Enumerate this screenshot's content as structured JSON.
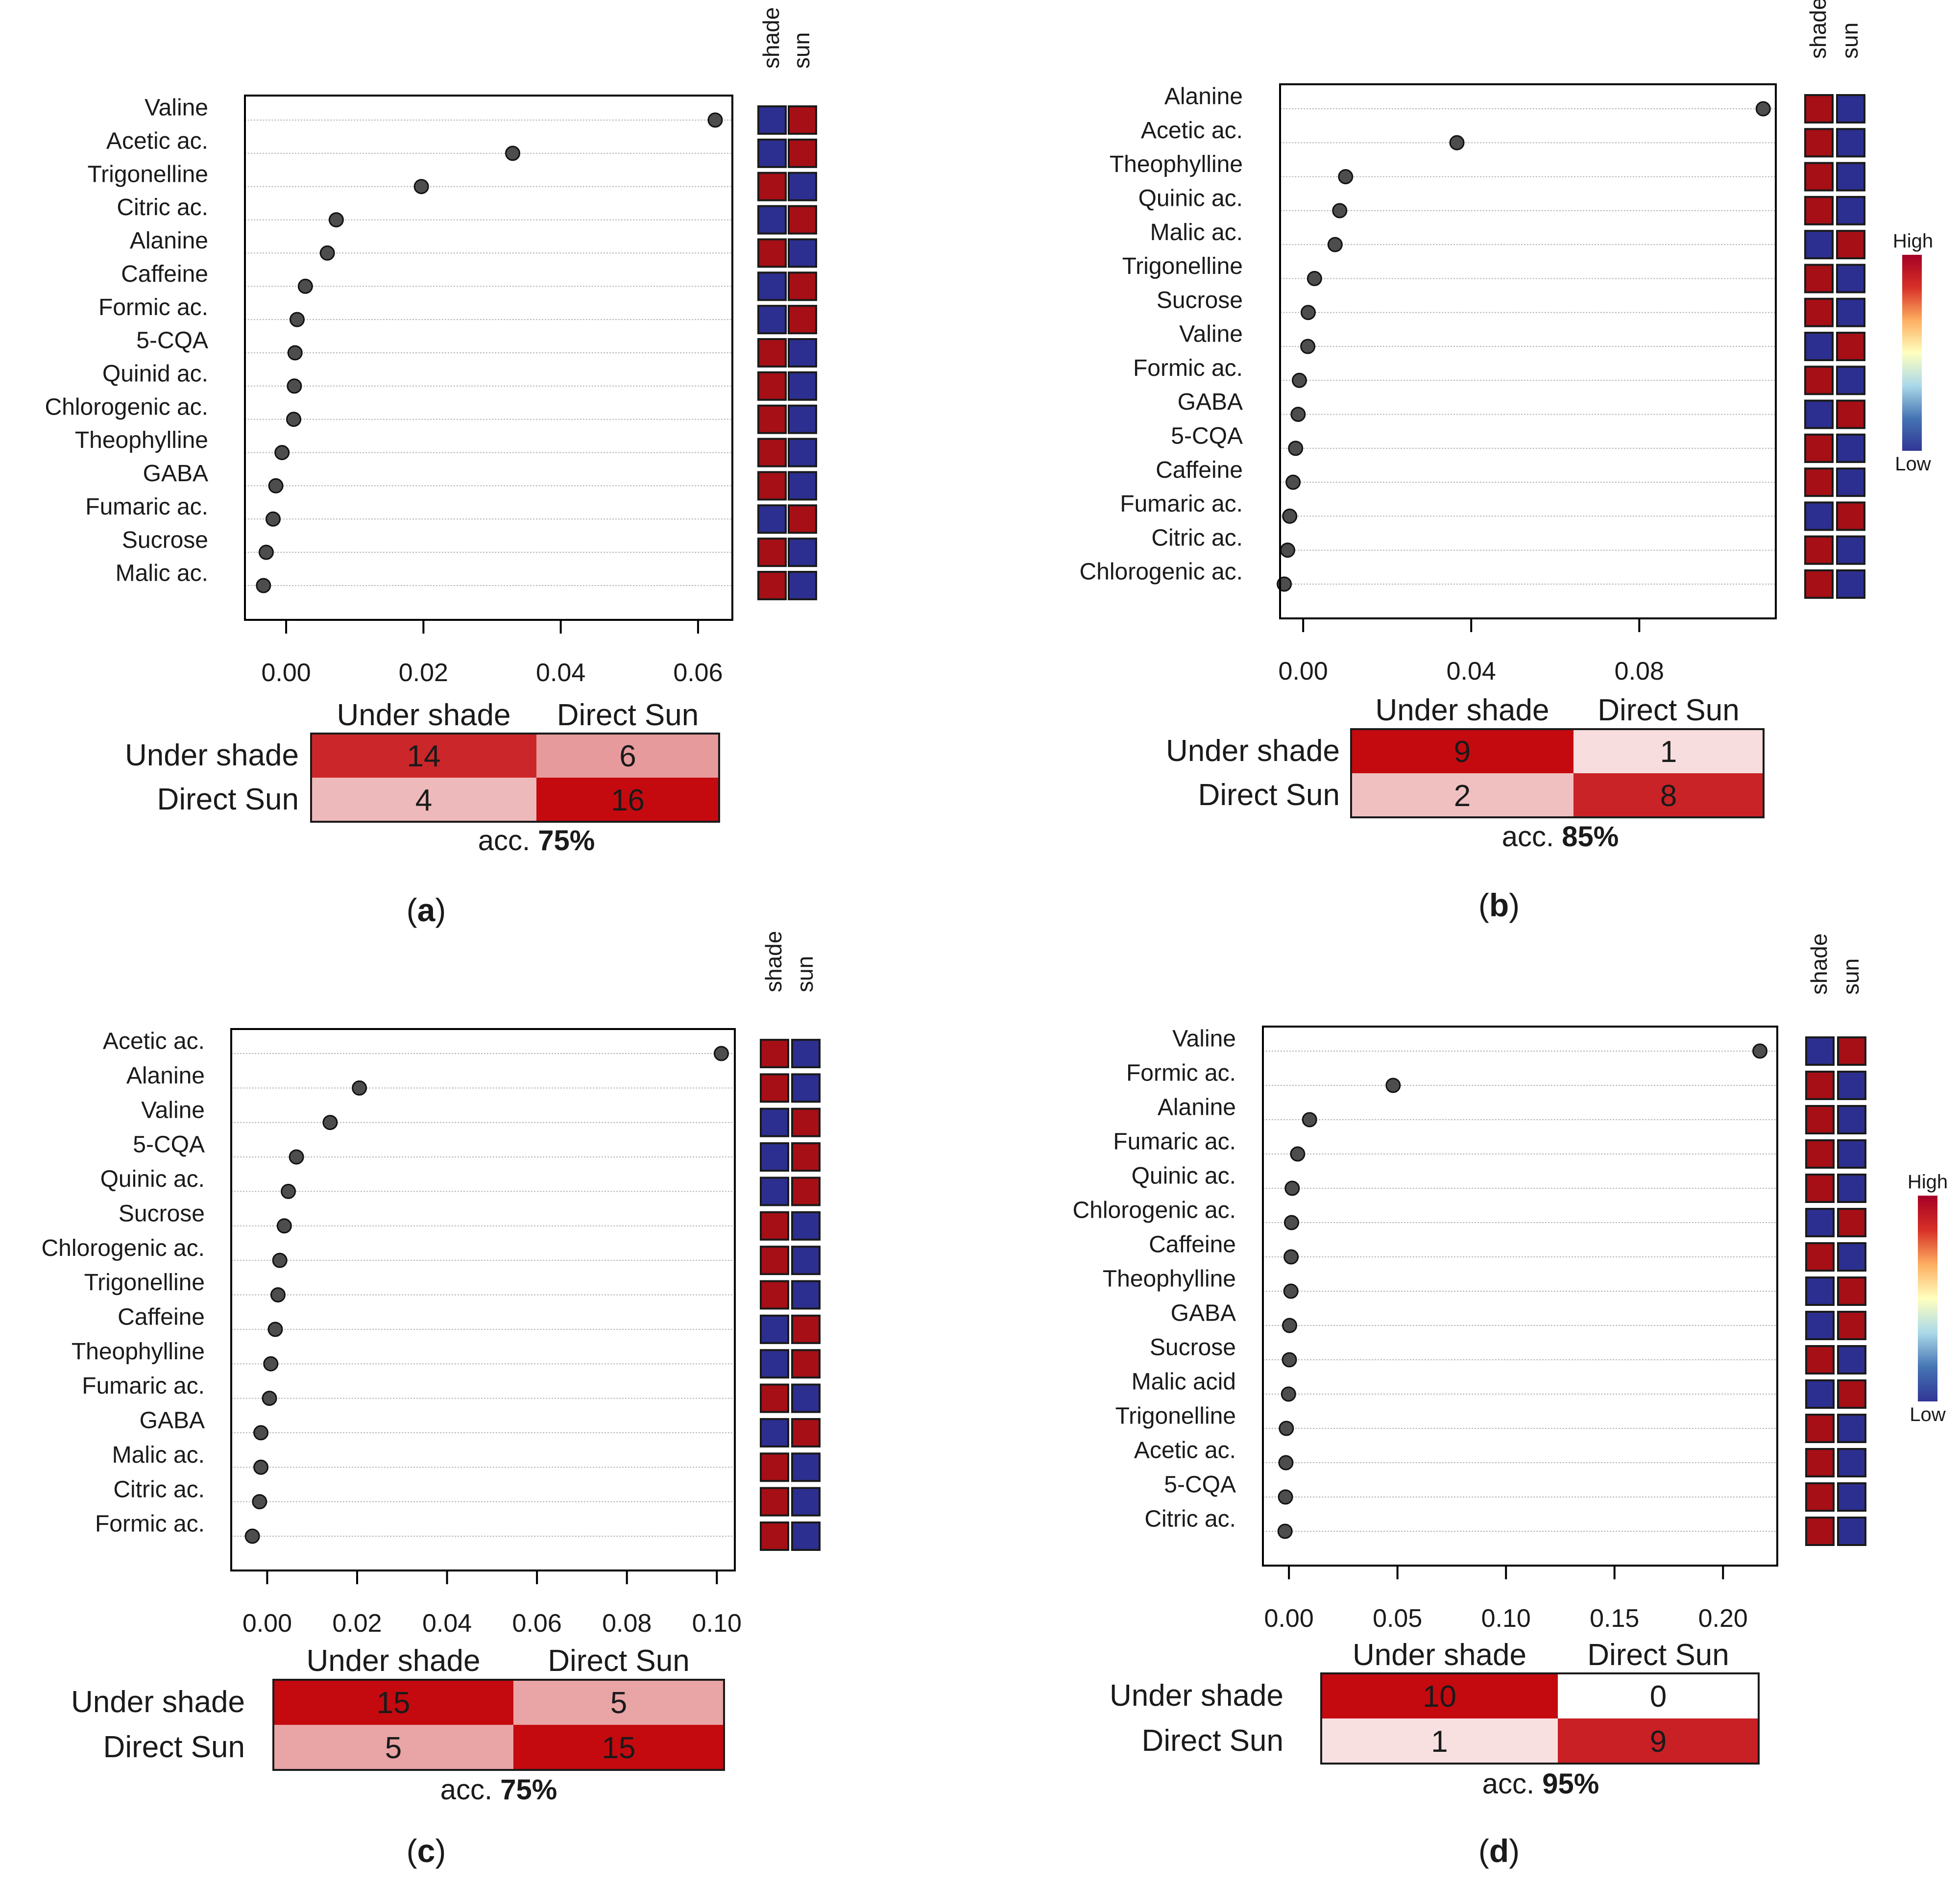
{
  "colors": {
    "high": "#a50f15",
    "low": "#2c2f8f",
    "dot": "#4d4d4d",
    "axis": "#000000",
    "gridline": "#b5b5b5",
    "colorbar": [
      "#313695",
      "#4575b4",
      "#abd9e9",
      "#ffffbf",
      "#fdae61",
      "#d73027",
      "#a50026"
    ]
  },
  "legend": {
    "high_label": "High",
    "low_label": "Low"
  },
  "panels": [
    {
      "label_prefix": "(",
      "label": "a",
      "label_suffix": ")",
      "accuracy_prefix": "acc. ",
      "accuracy": "75%",
      "chart_data": {
        "type": "dotplot",
        "xlabel": "",
        "xlim": [
          -0.006,
          0.065
        ],
        "xticks": [
          0.0,
          0.02,
          0.04,
          0.06
        ],
        "xtick_labels": [
          "0.00",
          "0.02",
          "0.04",
          "0.06"
        ],
        "heatmap_headers": [
          "shade",
          "sun"
        ],
        "items": [
          {
            "name": "Valine",
            "value": 0.0625,
            "shade": "low",
            "sun": "high"
          },
          {
            "name": "Acetic ac.",
            "value": 0.033,
            "shade": "low",
            "sun": "high"
          },
          {
            "name": "Trigonelline",
            "value": 0.0197,
            "shade": "high",
            "sun": "low"
          },
          {
            "name": "Citric ac.",
            "value": 0.0073,
            "shade": "low",
            "sun": "high"
          },
          {
            "name": "Alanine",
            "value": 0.006,
            "shade": "high",
            "sun": "low"
          },
          {
            "name": "Caffeine",
            "value": 0.0028,
            "shade": "low",
            "sun": "high"
          },
          {
            "name": "Formic ac.",
            "value": 0.0016,
            "shade": "low",
            "sun": "high"
          },
          {
            "name": "5-CQA",
            "value": 0.0013,
            "shade": "high",
            "sun": "low"
          },
          {
            "name": "Quinid ac.",
            "value": 0.0012,
            "shade": "high",
            "sun": "low"
          },
          {
            "name": "Chlorogenic ac.",
            "value": 0.0011,
            "shade": "high",
            "sun": "low"
          },
          {
            "name": "Theophylline",
            "value": -0.0006,
            "shade": "high",
            "sun": "low"
          },
          {
            "name": "GABA",
            "value": -0.0015,
            "shade": "high",
            "sun": "low"
          },
          {
            "name": "Fumaric ac.",
            "value": -0.0019,
            "shade": "low",
            "sun": "high"
          },
          {
            "name": "Sucrose",
            "value": -0.0029,
            "shade": "high",
            "sun": "low"
          },
          {
            "name": "Malic ac.",
            "value": -0.0033,
            "shade": "high",
            "sun": "low"
          }
        ]
      },
      "confusion": {
        "col_headers": [
          "Under shade",
          "Direct Sun"
        ],
        "row_headers": [
          "Under shade",
          "Direct Sun"
        ],
        "cells": [
          [
            14,
            6
          ],
          [
            4,
            16
          ]
        ]
      },
      "show_colorbar": false
    },
    {
      "label_prefix": "(",
      "label": "b",
      "label_suffix": ")",
      "accuracy_prefix": "acc. ",
      "accuracy": "85%",
      "chart_data": {
        "type": "dotplot",
        "xlabel": "",
        "xlim": [
          -0.0055,
          0.1125
        ],
        "xticks": [
          0.0,
          0.04,
          0.08
        ],
        "xtick_labels": [
          "0.00",
          "0.04",
          "0.08"
        ],
        "heatmap_headers": [
          "shade",
          "sun"
        ],
        "items": [
          {
            "name": "Alanine",
            "value": 0.1095,
            "shade": "high",
            "sun": "low"
          },
          {
            "name": "Acetic ac.",
            "value": 0.0366,
            "shade": "high",
            "sun": "low"
          },
          {
            "name": "Theophylline",
            "value": 0.0101,
            "shade": "high",
            "sun": "low"
          },
          {
            "name": "Quinic ac.",
            "value": 0.0087,
            "shade": "high",
            "sun": "low"
          },
          {
            "name": "Malic ac.",
            "value": 0.0076,
            "shade": "low",
            "sun": "high"
          },
          {
            "name": "Trigonelline",
            "value": 0.0027,
            "shade": "high",
            "sun": "low"
          },
          {
            "name": "Sucrose",
            "value": 0.0012,
            "shade": "high",
            "sun": "low"
          },
          {
            "name": "Valine",
            "value": 0.0011,
            "shade": "low",
            "sun": "high"
          },
          {
            "name": "Formic ac.",
            "value": -0.0009,
            "shade": "high",
            "sun": "low"
          },
          {
            "name": "GABA",
            "value": -0.0012,
            "shade": "low",
            "sun": "high"
          },
          {
            "name": "5-CQA",
            "value": -0.0018,
            "shade": "high",
            "sun": "low"
          },
          {
            "name": "Caffeine",
            "value": -0.0024,
            "shade": "high",
            "sun": "low"
          },
          {
            "name": "Fumaric ac.",
            "value": -0.0032,
            "shade": "low",
            "sun": "high"
          },
          {
            "name": "Citric ac.",
            "value": -0.0037,
            "shade": "high",
            "sun": "low"
          },
          {
            "name": "Chlorogenic ac.",
            "value": -0.0045,
            "shade": "high",
            "sun": "low"
          }
        ]
      },
      "confusion": {
        "col_headers": [
          "Under shade",
          "Direct Sun"
        ],
        "row_headers": [
          "Under shade",
          "Direct Sun"
        ],
        "cells": [
          [
            9,
            1
          ],
          [
            2,
            8
          ]
        ]
      },
      "show_colorbar": true
    },
    {
      "label_prefix": "(",
      "label": "c",
      "label_suffix": ")",
      "accuracy_prefix": "acc. ",
      "accuracy": "75%",
      "chart_data": {
        "type": "dotplot",
        "xlabel": "",
        "xlim": [
          -0.008,
          0.104
        ],
        "xticks": [
          0.0,
          0.02,
          0.04,
          0.06,
          0.08,
          0.1
        ],
        "xtick_labels": [
          "0.00",
          "0.02",
          "0.04",
          "0.06",
          "0.08",
          "0.10"
        ],
        "heatmap_headers": [
          "shade",
          "sun"
        ],
        "items": [
          {
            "name": "Acetic ac.",
            "value": 0.101,
            "shade": "high",
            "sun": "low"
          },
          {
            "name": "Alanine",
            "value": 0.0205,
            "shade": "high",
            "sun": "low"
          },
          {
            "name": "Valine",
            "value": 0.014,
            "shade": "low",
            "sun": "high"
          },
          {
            "name": "5-CQA",
            "value": 0.0065,
            "shade": "low",
            "sun": "high"
          },
          {
            "name": "Quinic ac.",
            "value": 0.0047,
            "shade": "low",
            "sun": "high"
          },
          {
            "name": "Sucrose",
            "value": 0.0038,
            "shade": "high",
            "sun": "low"
          },
          {
            "name": "Chlorogenic ac.",
            "value": 0.0028,
            "shade": "high",
            "sun": "low"
          },
          {
            "name": "Trigonelline",
            "value": 0.0024,
            "shade": "high",
            "sun": "low"
          },
          {
            "name": "Caffeine",
            "value": 0.0018,
            "shade": "low",
            "sun": "high"
          },
          {
            "name": "Theophylline",
            "value": 0.0008,
            "shade": "low",
            "sun": "high"
          },
          {
            "name": "Fumaric ac.",
            "value": 0.0005,
            "shade": "high",
            "sun": "low"
          },
          {
            "name": "GABA",
            "value": -0.0014,
            "shade": "low",
            "sun": "high"
          },
          {
            "name": "Malic ac.",
            "value": -0.0014,
            "shade": "high",
            "sun": "low"
          },
          {
            "name": "Citric ac.",
            "value": -0.0017,
            "shade": "high",
            "sun": "low"
          },
          {
            "name": "Formic ac.",
            "value": -0.0033,
            "shade": "high",
            "sun": "low"
          }
        ]
      },
      "confusion": {
        "col_headers": [
          "Under shade",
          "Direct Sun"
        ],
        "row_headers": [
          "Under shade",
          "Direct Sun"
        ],
        "cells": [
          [
            15,
            5
          ],
          [
            5,
            15
          ]
        ]
      },
      "show_colorbar": false
    },
    {
      "label_prefix": "(",
      "label": "d",
      "label_suffix": ")",
      "accuracy_prefix": "acc. ",
      "accuracy": "95%",
      "chart_data": {
        "type": "dotplot",
        "xlabel": "",
        "xlim": [
          -0.012,
          0.225
        ],
        "xticks": [
          0.0,
          0.05,
          0.1,
          0.15,
          0.2
        ],
        "xtick_labels": [
          "0.00",
          "0.05",
          "0.10",
          "0.15",
          "0.20"
        ],
        "heatmap_headers": [
          "shade",
          "sun"
        ],
        "items": [
          {
            "name": "Valine",
            "value": 0.217,
            "shade": "low",
            "sun": "high"
          },
          {
            "name": "Formic ac.",
            "value": 0.048,
            "shade": "high",
            "sun": "low"
          },
          {
            "name": "Alanine",
            "value": 0.0095,
            "shade": "high",
            "sun": "low"
          },
          {
            "name": "Fumaric ac.",
            "value": 0.004,
            "shade": "high",
            "sun": "low"
          },
          {
            "name": "Quinic ac.",
            "value": 0.0015,
            "shade": "high",
            "sun": "low"
          },
          {
            "name": "Chlorogenic ac.",
            "value": 0.0012,
            "shade": "low",
            "sun": "high"
          },
          {
            "name": "Caffeine",
            "value": 0.001,
            "shade": "high",
            "sun": "low"
          },
          {
            "name": "Theophylline",
            "value": 0.0009,
            "shade": "low",
            "sun": "high"
          },
          {
            "name": "GABA",
            "value": 0.0003,
            "shade": "low",
            "sun": "high"
          },
          {
            "name": "Sucrose",
            "value": 0.0002,
            "shade": "high",
            "sun": "low"
          },
          {
            "name": "Malic acid",
            "value": -0.0002,
            "shade": "low",
            "sun": "high"
          },
          {
            "name": "Trigonelline",
            "value": -0.0012,
            "shade": "high",
            "sun": "low"
          },
          {
            "name": "Acetic ac.",
            "value": -0.0014,
            "shade": "high",
            "sun": "low"
          },
          {
            "name": "5-CQA",
            "value": -0.0016,
            "shade": "high",
            "sun": "low"
          },
          {
            "name": "Citric ac.",
            "value": -0.0018,
            "shade": "high",
            "sun": "low"
          }
        ]
      },
      "confusion": {
        "col_headers": [
          "Under shade",
          "Direct Sun"
        ],
        "row_headers": [
          "Under shade",
          "Direct Sun"
        ],
        "cells": [
          [
            10,
            0
          ],
          [
            1,
            9
          ]
        ]
      },
      "show_colorbar": true
    }
  ]
}
